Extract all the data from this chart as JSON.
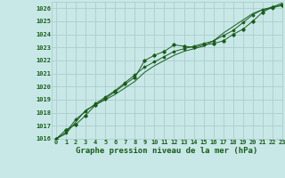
{
  "title": "Graphe pression niveau de la mer (hPa)",
  "bg_color": "#c8e8e8",
  "grid_color": "#a8c8c8",
  "line_color": "#1a5c1a",
  "xlim": [
    -0.5,
    23
  ],
  "ylim": [
    1016,
    1026.5
  ],
  "yticks": [
    1016,
    1017,
    1018,
    1019,
    1020,
    1021,
    1022,
    1023,
    1024,
    1025,
    1026
  ],
  "xticks": [
    0,
    1,
    2,
    3,
    4,
    5,
    6,
    7,
    8,
    9,
    10,
    11,
    12,
    13,
    14,
    15,
    16,
    17,
    18,
    19,
    20,
    21,
    22,
    23
  ],
  "line1": [
    1016.0,
    1016.7,
    1017.1,
    1017.8,
    1018.6,
    1019.1,
    1019.6,
    1020.2,
    1020.7,
    1022.0,
    1022.4,
    1022.7,
    1023.2,
    1023.1,
    1023.0,
    1023.2,
    1023.3,
    1023.5,
    1024.0,
    1024.4,
    1025.0,
    1025.7,
    1026.1,
    1026.2
  ],
  "line2": [
    1016.0,
    1016.5,
    1017.5,
    1018.1,
    1018.7,
    1019.2,
    1019.7,
    1020.3,
    1020.9,
    1021.5,
    1021.9,
    1022.3,
    1022.7,
    1022.9,
    1023.1,
    1023.3,
    1023.5,
    1023.9,
    1024.3,
    1024.9,
    1025.5,
    1025.9,
    1026.0,
    1026.3
  ],
  "line3": [
    1016.0,
    1016.4,
    1017.3,
    1018.2,
    1018.6,
    1019.0,
    1019.4,
    1019.9,
    1020.4,
    1021.1,
    1021.6,
    1022.0,
    1022.4,
    1022.7,
    1022.9,
    1023.1,
    1023.5,
    1024.1,
    1024.6,
    1025.1,
    1025.6,
    1025.9,
    1026.1,
    1026.4
  ],
  "title_fontsize": 6.5,
  "tick_fontsize": 5.0,
  "ylabel_fontsize": 5.0
}
